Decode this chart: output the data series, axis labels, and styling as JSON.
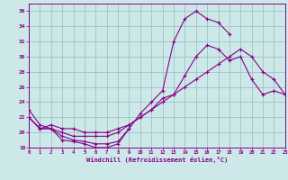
{
  "xlabel": "Windchill (Refroidissement éolien,°C)",
  "xlim": [
    0,
    23
  ],
  "ylim": [
    18,
    37
  ],
  "yticks": [
    18,
    20,
    22,
    24,
    26,
    28,
    30,
    32,
    34,
    36
  ],
  "xticks": [
    0,
    1,
    2,
    3,
    4,
    5,
    6,
    7,
    8,
    9,
    10,
    11,
    12,
    13,
    14,
    15,
    16,
    17,
    18,
    19,
    20,
    21,
    22,
    23
  ],
  "bg_color": "#cce8e8",
  "line_color": "#880088",
  "grid_color": "#99bbbb",
  "line_a_x": [
    0,
    1,
    2,
    3,
    4,
    5,
    6,
    7,
    8,
    9
  ],
  "line_a_y": [
    23,
    21,
    20.5,
    19,
    18.8,
    18.5,
    18,
    18,
    18.5,
    20.5
  ],
  "line_b_x": [
    0,
    1,
    2,
    3,
    4,
    5,
    6,
    7,
    8,
    9,
    10,
    11,
    12,
    13,
    14,
    15,
    16,
    17,
    18
  ],
  "line_b_y": [
    22,
    20.5,
    20.5,
    19.5,
    19,
    18.8,
    18.5,
    18.5,
    18.8,
    20.5,
    22.5,
    24,
    25.5,
    32,
    35,
    36,
    35,
    34.5,
    33
  ],
  "line_c_x": [
    0,
    1,
    2,
    3,
    4,
    5,
    6,
    7,
    8,
    9,
    10,
    11,
    12,
    13,
    14,
    15,
    16,
    17,
    18,
    19,
    20,
    21,
    22,
    23
  ],
  "line_c_y": [
    22,
    20.5,
    20.5,
    20,
    19.5,
    19.5,
    19.5,
    19.5,
    20,
    21,
    22,
    23,
    24.5,
    25,
    27.5,
    30,
    31.5,
    31,
    29.5,
    30,
    27,
    25,
    25.5,
    25
  ],
  "line_d_x": [
    0,
    1,
    2,
    3,
    4,
    5,
    6,
    7,
    8,
    9,
    10,
    11,
    12,
    13,
    14,
    15,
    16,
    17,
    18,
    19,
    20,
    21,
    22,
    23
  ],
  "line_d_y": [
    22,
    20.5,
    21,
    20.5,
    20.5,
    20,
    20,
    20,
    20.5,
    21,
    22,
    23,
    24,
    25,
    26,
    27,
    28,
    29,
    30,
    31,
    30,
    28,
    27,
    25
  ]
}
